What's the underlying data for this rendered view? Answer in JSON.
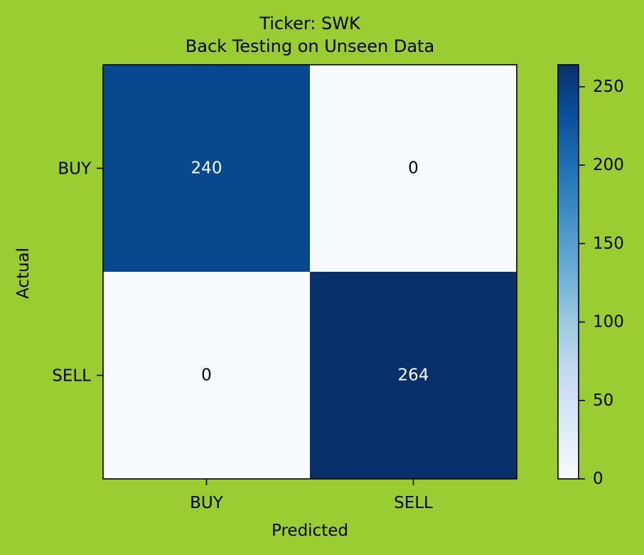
{
  "chart_data": {
    "type": "heatmap",
    "title": [
      "Ticker: SWK",
      "Back Testing on Unseen Data"
    ],
    "xlabel": "Predicted",
    "ylabel": "Actual",
    "x_categories": [
      "BUY",
      "SELL"
    ],
    "y_categories": [
      "BUY",
      "SELL"
    ],
    "values": [
      [
        240,
        0
      ],
      [
        0,
        264
      ]
    ],
    "colormap": "Blues",
    "colorbar": {
      "min": 0,
      "max": 264,
      "ticks": [
        0,
        50,
        100,
        150,
        200,
        250
      ]
    }
  },
  "colors": {
    "background": "#9acd32",
    "text_on_dark": "#ffffff",
    "text_on_light": "#000000"
  }
}
